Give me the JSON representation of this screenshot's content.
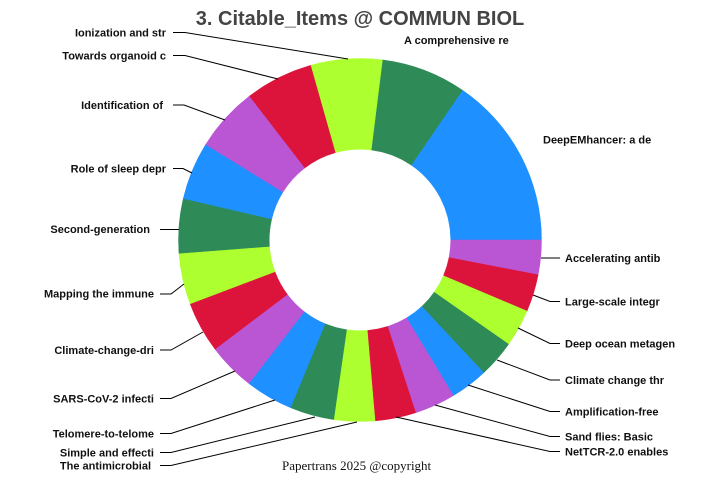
{
  "chart_data": {
    "type": "pie",
    "subtype": "donut",
    "title": "3. Citable_Items @ COMMUN BIOL",
    "categories": [
      "DeepEMhancer: a de",
      "A comprehensive re",
      "Ionization and str",
      "Towards organoid c",
      "Identification of",
      "Role of sleep depr",
      "Second-generation",
      "Mapping the immune",
      "Climate-change-dri",
      "SARS-CoV-2 infecti",
      "Telomere-to-telome",
      "Simple and effecti",
      "The antimicrobial",
      "NetTCR-2.0 enables",
      "Sand flies: Basic",
      "Amplification-free",
      "Climate change thr",
      "Deep ocean metagen",
      "Large-scale integr",
      "Accelerating antib"
    ],
    "values": [
      51,
      25,
      21,
      20,
      19,
      17,
      16,
      15,
      15,
      14,
      14,
      13,
      12,
      12,
      12,
      11,
      11,
      11,
      11,
      10
    ],
    "colors": [
      "#1E90FF",
      "#2E8B57",
      "#ADFF2F",
      "#DC143C",
      "#BA55D3"
    ],
    "start_angle_deg": 0,
    "direction": "counterclockwise",
    "hole_ratio": 0.5,
    "legend": "none",
    "xlabel": "",
    "ylabel": ""
  },
  "footer": {
    "copyright": "Papertrans 2025 @copyright"
  }
}
